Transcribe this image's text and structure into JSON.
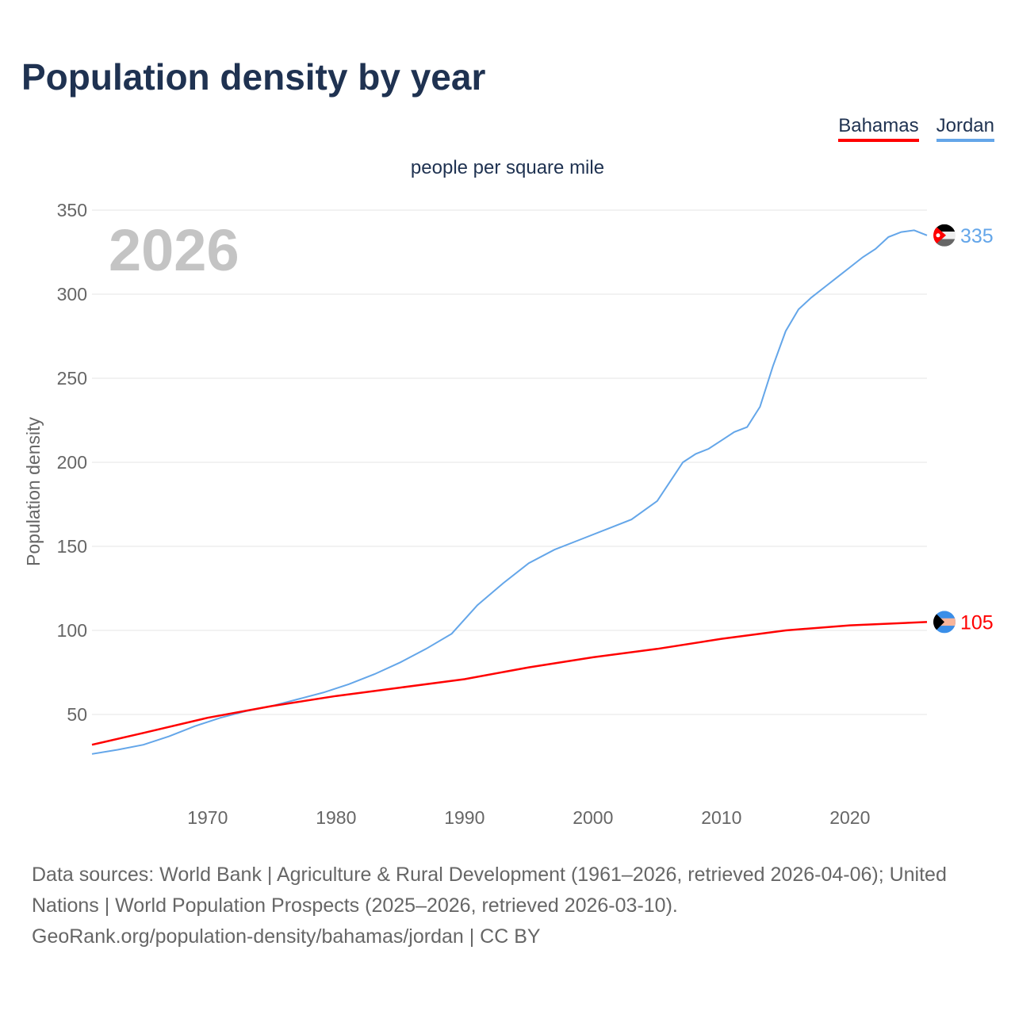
{
  "title": "Population density by year",
  "legend": [
    {
      "name": "Bahamas",
      "color": "#ff0000"
    },
    {
      "name": "Jordan",
      "color": "#64a6e9"
    }
  ],
  "source_lines": [
    "Data sources: World Bank | Agriculture & Rural Development (1961–2026, retrieved 2026-04-06); United Nations | World Population Prospects (2025–2026, retrieved 2026-03-10).",
    "GeoRank.org/population-density/bahamas/jordan | CC BY"
  ],
  "chart_data": {
    "type": "line",
    "title": "Population density by year",
    "subtitle": "people per square mile",
    "ylabel": "Population density",
    "xlabel": "",
    "year_label": "2026",
    "xlim": [
      1961,
      2026
    ],
    "ylim": [
      0,
      350
    ],
    "yticks": [
      50,
      100,
      150,
      200,
      250,
      300,
      350
    ],
    "xticks": [
      1970,
      1980,
      1990,
      2000,
      2010,
      2020
    ],
    "grid": true,
    "legend_placement": "top-right",
    "series": [
      {
        "name": "Jordan",
        "color": "#64a6e9",
        "end_label": "335",
        "x": [
          1961,
          1963,
          1965,
          1967,
          1969,
          1971,
          1973,
          1975,
          1977,
          1979,
          1981,
          1983,
          1985,
          1987,
          1989,
          1991,
          1993,
          1995,
          1997,
          1999,
          2001,
          2003,
          2005,
          2007,
          2008,
          2009,
          2010,
          2011,
          2012,
          2013,
          2014,
          2015,
          2016,
          2017,
          2018,
          2019,
          2020,
          2021,
          2022,
          2023,
          2024,
          2025,
          2026
        ],
        "values": [
          26.5,
          29,
          32,
          37,
          43,
          48,
          52,
          55,
          59,
          63,
          68,
          74,
          81,
          89,
          98,
          115,
          128,
          140,
          148,
          154,
          160,
          166,
          177,
          200,
          205,
          208,
          213,
          218,
          221,
          233,
          257,
          278,
          291,
          298,
          304,
          310,
          316,
          322,
          327,
          334,
          337,
          338,
          335
        ]
      },
      {
        "name": "Bahamas",
        "color": "#ff0000",
        "end_label": "105",
        "x": [
          1961,
          1965,
          1970,
          1975,
          1980,
          1985,
          1990,
          1995,
          2000,
          2005,
          2010,
          2015,
          2020,
          2026
        ],
        "values": [
          32,
          39,
          48,
          55,
          61,
          66,
          71,
          78,
          84,
          89,
          95,
          100,
          103,
          105
        ]
      }
    ]
  }
}
